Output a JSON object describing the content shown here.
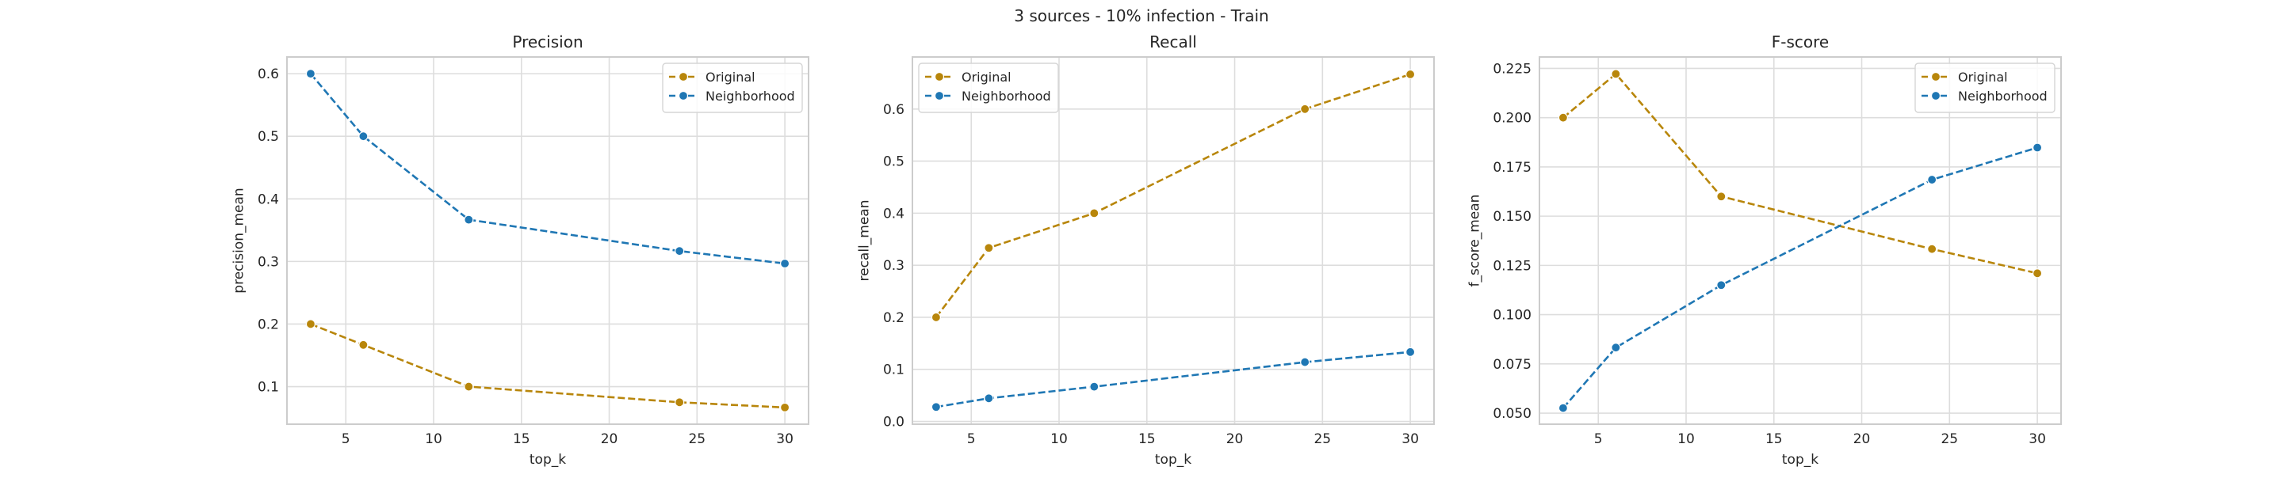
{
  "figure": {
    "suptitle": "3 sources - 10% infection - Train"
  },
  "chart_data": [
    {
      "type": "line",
      "title": "Precision",
      "xlabel": "top_k",
      "ylabel": "precision_mean",
      "x": [
        3,
        6,
        12,
        24,
        30
      ],
      "xlim": [
        1.65,
        31.35
      ],
      "ylim": [
        0.04,
        0.6267
      ],
      "xticks": [
        5,
        10,
        15,
        20,
        25,
        30
      ],
      "yticks": [
        0.1,
        0.2,
        0.3,
        0.4,
        0.5,
        0.6
      ],
      "ytick_labels": [
        "0.1",
        "0.2",
        "0.3",
        "0.4",
        "0.5",
        "0.6"
      ],
      "grid": true,
      "legend_position": "top-right",
      "series": [
        {
          "name": "Original",
          "color": "#b8860b",
          "linestyle": "dashed",
          "marker": "circle",
          "values": [
            0.2,
            0.1667,
            0.1,
            0.075,
            0.0667
          ]
        },
        {
          "name": "Neighborhood",
          "color": "#1f77b4",
          "linestyle": "dashed",
          "marker": "circle",
          "values": [
            0.6,
            0.5,
            0.3667,
            0.3167,
            0.2967
          ]
        }
      ]
    },
    {
      "type": "line",
      "title": "Recall",
      "xlabel": "top_k",
      "ylabel": "recall_mean",
      "x": [
        3,
        6,
        12,
        24,
        30
      ],
      "xlim": [
        1.65,
        31.35
      ],
      "ylim": [
        -0.0053,
        0.7
      ],
      "xticks": [
        5,
        10,
        15,
        20,
        25,
        30
      ],
      "yticks": [
        0.0,
        0.1,
        0.2,
        0.3,
        0.4,
        0.5,
        0.6
      ],
      "ytick_labels": [
        "0.0",
        "0.1",
        "0.2",
        "0.3",
        "0.4",
        "0.5",
        "0.6"
      ],
      "grid": true,
      "legend_position": "top-left",
      "series": [
        {
          "name": "Original",
          "color": "#b8860b",
          "linestyle": "dashed",
          "marker": "circle",
          "values": [
            0.2,
            0.3333,
            0.4,
            0.6,
            0.6667
          ]
        },
        {
          "name": "Neighborhood",
          "color": "#1f77b4",
          "linestyle": "dashed",
          "marker": "circle",
          "values": [
            0.0278,
            0.0444,
            0.0667,
            0.1139,
            0.1333
          ]
        }
      ]
    },
    {
      "type": "line",
      "title": "F-score",
      "xlabel": "top_k",
      "ylabel": "f_score_mean",
      "x": [
        3,
        6,
        12,
        24,
        30
      ],
      "xlim": [
        1.65,
        31.35
      ],
      "ylim": [
        0.0444,
        0.2308
      ],
      "xticks": [
        5,
        10,
        15,
        20,
        25,
        30
      ],
      "yticks": [
        0.05,
        0.075,
        0.1,
        0.125,
        0.15,
        0.175,
        0.2,
        0.225
      ],
      "ytick_labels": [
        "0.050",
        "0.075",
        "0.100",
        "0.125",
        "0.150",
        "0.175",
        "0.200",
        "0.225"
      ],
      "grid": true,
      "legend_position": "top-right",
      "series": [
        {
          "name": "Original",
          "color": "#b8860b",
          "linestyle": "dashed",
          "marker": "circle",
          "values": [
            0.2,
            0.2222,
            0.16,
            0.1333,
            0.121
          ]
        },
        {
          "name": "Neighborhood",
          "color": "#1f77b4",
          "linestyle": "dashed",
          "marker": "circle",
          "values": [
            0.0526,
            0.0833,
            0.115,
            0.1685,
            0.1848
          ]
        }
      ]
    }
  ]
}
